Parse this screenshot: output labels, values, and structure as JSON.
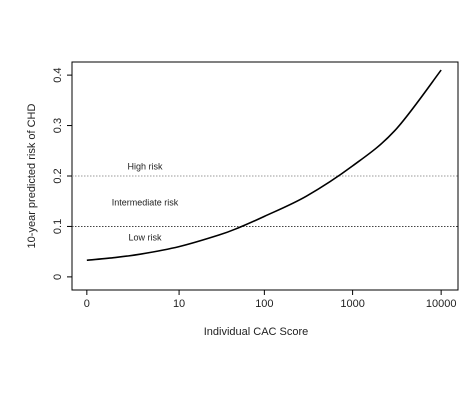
{
  "chart_data": {
    "type": "line",
    "x_label": "Individual CAC Score",
    "y_label": "10-year predicted risk of CHD",
    "x": [
      0,
      1,
      3,
      10,
      30,
      50,
      100,
      300,
      1000,
      3000,
      10000
    ],
    "values": [
      0.033,
      0.038,
      0.045,
      0.06,
      0.083,
      0.097,
      0.12,
      0.16,
      0.22,
      0.29,
      0.41
    ],
    "color": "#000000",
    "xscale": "log1p",
    "xlim": [
      -0.32,
      15500
    ],
    "xticks": [
      0,
      10,
      100,
      1000,
      10000
    ],
    "ylim": [
      -0.026,
      0.426
    ],
    "yticks": [
      0.0,
      0.1,
      0.2,
      0.3,
      0.4
    ],
    "reference_lines": [
      {
        "value": 0.2,
        "color": "#999999"
      },
      {
        "value": 0.1,
        "color": "#444444"
      }
    ],
    "annotations": [
      "High risk",
      "Intermediate risk",
      "Low risk"
    ]
  }
}
